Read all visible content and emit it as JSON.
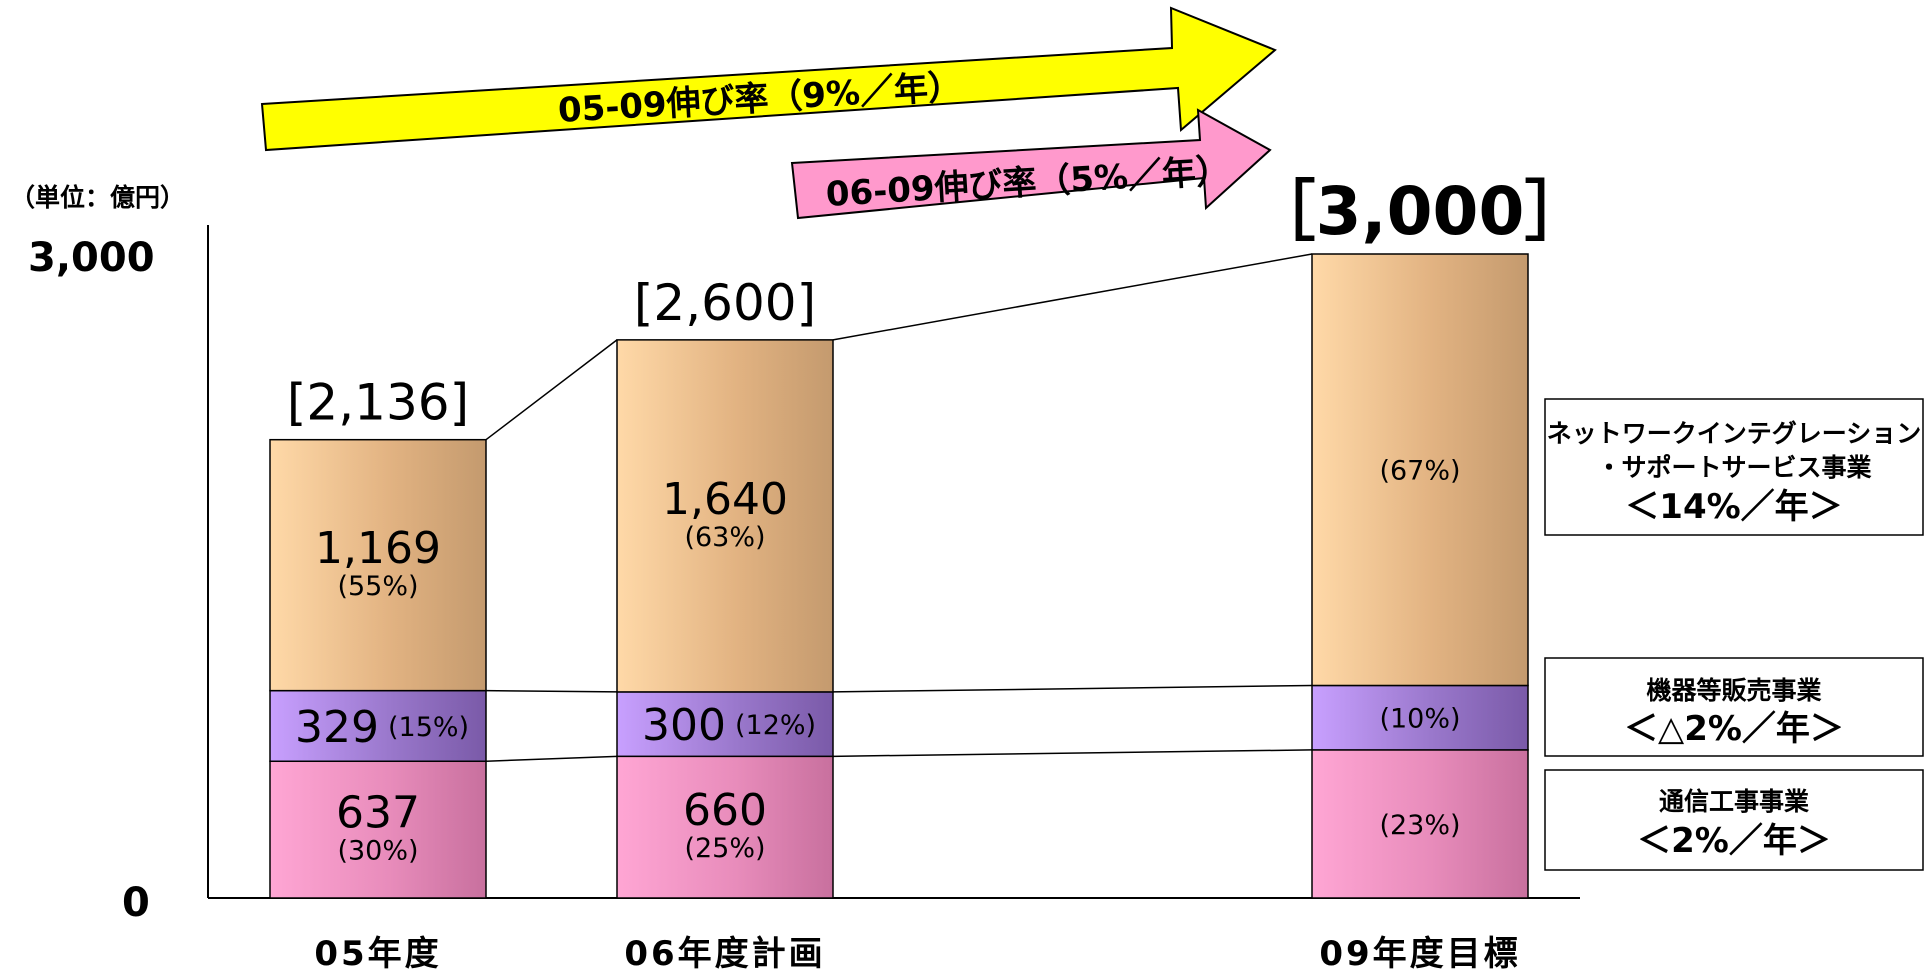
{
  "unit_label": "（単位：億円）",
  "arrows": {
    "long": {
      "label": "05-09伸び率（9%／年）",
      "color": "#ffff00"
    },
    "short": {
      "label": "06-09伸び率（5%／年）",
      "color": "#ff99cc"
    }
  },
  "chart_data": {
    "type": "bar",
    "stacked": true,
    "ylim": [
      0,
      3000
    ],
    "yticks": [
      "0",
      "3,000"
    ],
    "categories": [
      "05年度",
      "06年度計画",
      "09年度目標"
    ],
    "totals": [
      2136,
      2600,
      3000
    ],
    "total_labels": [
      "[2,136]",
      "[2,600]",
      "［3,000］"
    ],
    "series": [
      {
        "name": "通信工事事業",
        "values": [
          637,
          660,
          690
        ],
        "value_labels": [
          "637",
          "660",
          ""
        ],
        "pct_labels": [
          "(30%)",
          "(25%)",
          "(23%)"
        ],
        "color": "#ee88bb"
      },
      {
        "name": "機器等販売事業",
        "values": [
          329,
          300,
          300
        ],
        "value_labels": [
          "329",
          "300",
          ""
        ],
        "pct_labels": [
          "(15%)",
          "(12%)",
          "(10%)"
        ],
        "color": "#9977cc"
      },
      {
        "name": "ネットワークインテグレーション・サポートサービス事業",
        "values": [
          1169,
          1640,
          2010
        ],
        "value_labels": [
          "1,169",
          "1,640",
          ""
        ],
        "pct_labels": [
          "(55%)",
          "(63%)",
          "(67%)"
        ],
        "color": "#e8b885"
      }
    ]
  },
  "legend": [
    {
      "lines": [
        "ネットワークインテグレーション",
        "・サポートサービス事業"
      ],
      "rate": "＜14%／年＞"
    },
    {
      "lines": [
        "機器等販売事業"
      ],
      "rate": "＜△2%／年＞"
    },
    {
      "lines": [
        "通信工事事業"
      ],
      "rate": "＜2%／年＞"
    }
  ]
}
